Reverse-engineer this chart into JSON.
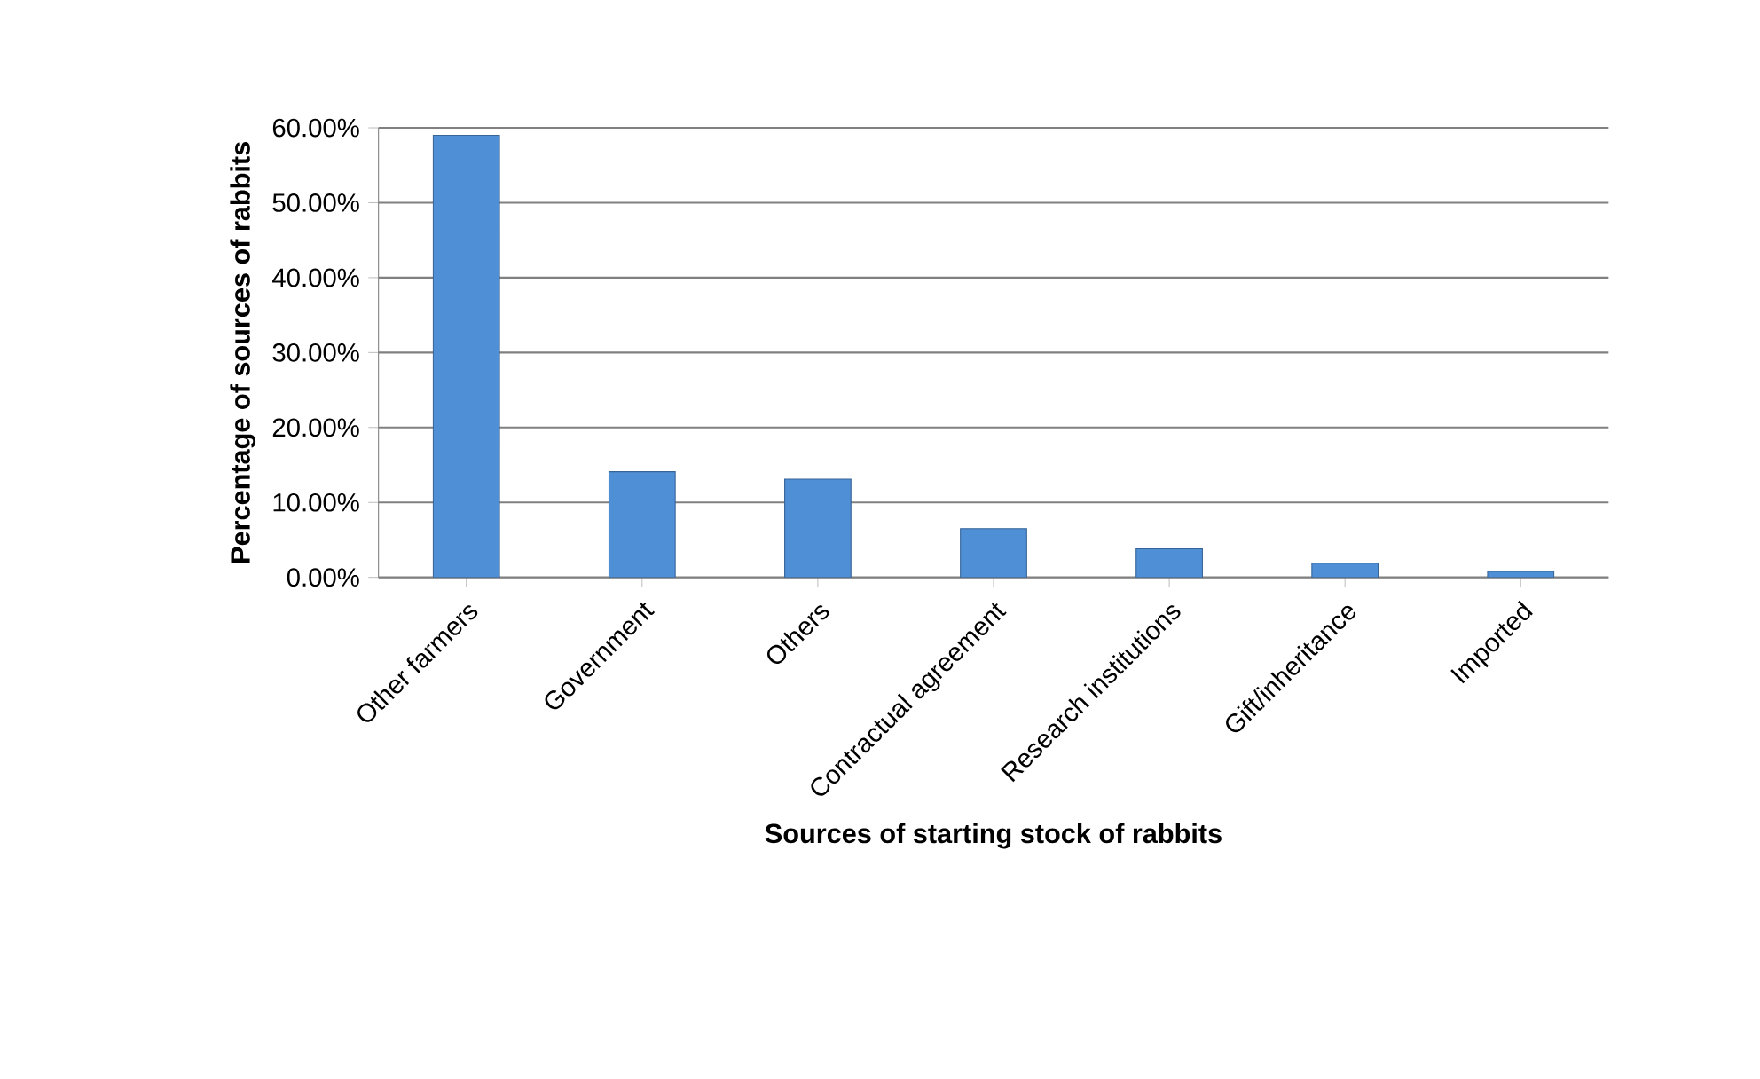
{
  "chart_data": {
    "type": "bar",
    "xlabel": "Sources of starting stock of rabbits",
    "ylabel": "Percentage of sources of rabbits",
    "categories": [
      "Other farmers",
      "Government",
      "Others",
      "Contractual agreement",
      "Research institutions",
      "Gift/inheritance",
      "Imported"
    ],
    "values": [
      59.0,
      14.1,
      13.1,
      6.5,
      3.8,
      1.9,
      0.8
    ],
    "color": "#4f8fd6",
    "ylim": [
      0,
      60
    ],
    "yticks": [
      {
        "value": 0,
        "label": "0.00%"
      },
      {
        "value": 10,
        "label": "10.00%"
      },
      {
        "value": 20,
        "label": "20.00%"
      },
      {
        "value": 30,
        "label": "30.00%"
      },
      {
        "value": 40,
        "label": "40.00%"
      },
      {
        "value": 50,
        "label": "50.00%"
      },
      {
        "value": 60,
        "label": "60.00%"
      }
    ],
    "grid": "y"
  }
}
